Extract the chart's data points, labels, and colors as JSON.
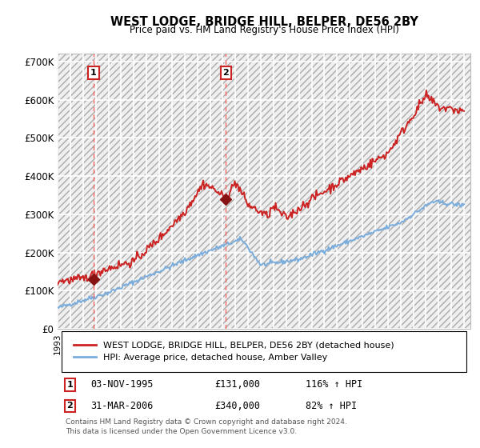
{
  "title": "WEST LODGE, BRIDGE HILL, BELPER, DE56 2BY",
  "subtitle": "Price paid vs. HM Land Registry's House Price Index (HPI)",
  "ylim": [
    0,
    720000
  ],
  "yticks": [
    0,
    100000,
    200000,
    300000,
    400000,
    500000,
    600000,
    700000
  ],
  "ytick_labels": [
    "£0",
    "£100K",
    "£200K",
    "£300K",
    "£400K",
    "£500K",
    "£600K",
    "£700K"
  ],
  "xlim_start": 1993,
  "xlim_end": 2025.5,
  "sale1_date_x": 1995.83,
  "sale1_price": 131000,
  "sale1_label": "1",
  "sale2_date_x": 2006.25,
  "sale2_price": 340000,
  "sale2_label": "2",
  "hpi_color": "#7aaddc",
  "price_color": "#cc2222",
  "marker_color": "#881111",
  "sale_line_color": "#ff6666",
  "legend_label_price": "WEST LODGE, BRIDGE HILL, BELPER, DE56 2BY (detached house)",
  "legend_label_hpi": "HPI: Average price, detached house, Amber Valley",
  "footnote": "Contains HM Land Registry data © Crown copyright and database right 2024.\nThis data is licensed under the Open Government Licence v3.0.",
  "table_row1": [
    "1",
    "03-NOV-1995",
    "£131,000",
    "116% ↑ HPI"
  ],
  "table_row2": [
    "2",
    "31-MAR-2006",
    "£340,000",
    "82% ↑ HPI"
  ]
}
